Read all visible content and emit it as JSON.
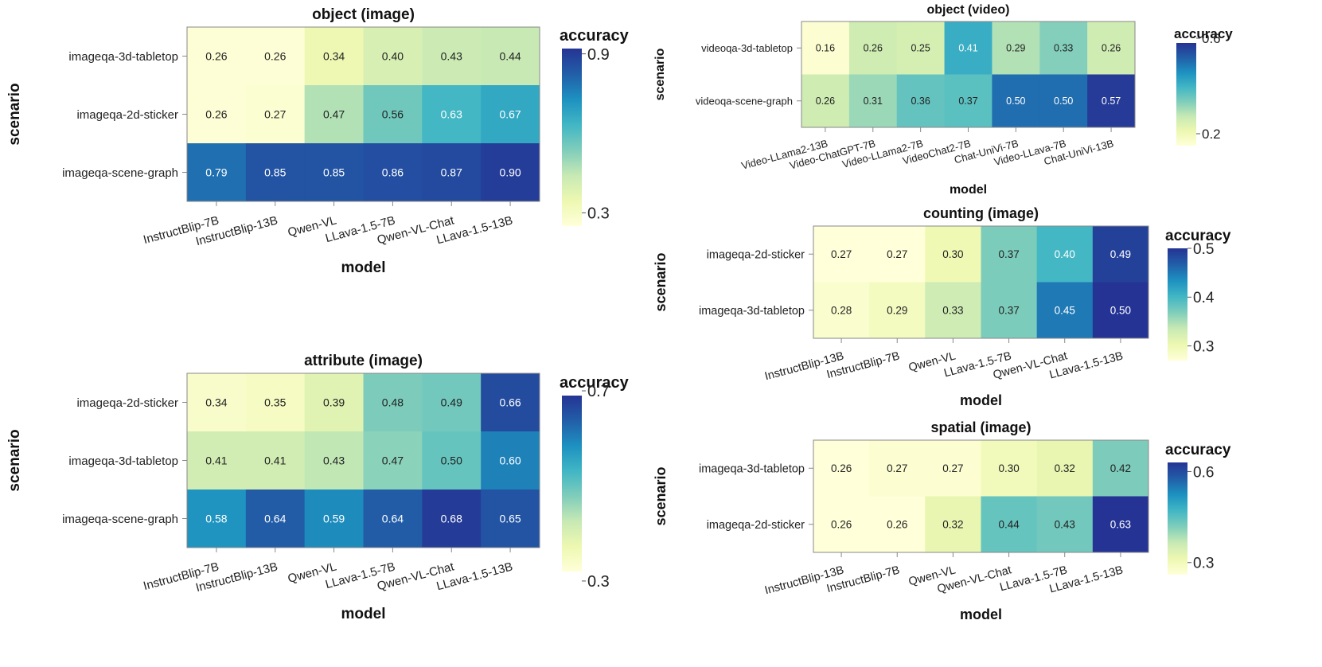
{
  "colormap": [
    "#ffffd9",
    "#edf8b1",
    "#c7e9b4",
    "#7fcdbb",
    "#41b6c4",
    "#1d91c0",
    "#225ea8",
    "#253494"
  ],
  "chart_data": [
    {
      "type": "heatmap",
      "title": "object (image)",
      "xlabel": "model",
      "ylabel": "scenario",
      "legend_title": "accuracy",
      "vmin": 0.25,
      "vmax": 0.92,
      "ticks": [
        0.3,
        0.9
      ],
      "tick_labels": [
        "0.3",
        "0.9"
      ],
      "x": [
        "InstructBlip-7B",
        "InstructBlip-13B",
        "Qwen-VL",
        "LLava-1.5-7B",
        "Qwen-VL-Chat",
        "LLava-1.5-13B"
      ],
      "y": [
        "imageqa-3d-tabletop",
        "imageqa-2d-sticker",
        "imageqa-scene-graph"
      ],
      "z": [
        [
          0.26,
          0.26,
          0.34,
          0.4,
          0.43,
          0.44
        ],
        [
          0.26,
          0.27,
          0.47,
          0.56,
          0.63,
          0.67
        ],
        [
          0.79,
          0.85,
          0.85,
          0.86,
          0.87,
          0.9
        ]
      ],
      "labels": [
        [
          "0.26",
          "0.26",
          "0.34",
          "0.40",
          "0.43",
          "0.44"
        ],
        [
          "0.26",
          "0.27",
          "0.47",
          "0.56",
          "0.63",
          "0.67"
        ],
        [
          "0.79",
          "0.85",
          "0.85",
          "0.86",
          "0.87",
          "0.90"
        ]
      ]
    },
    {
      "type": "heatmap",
      "title": "attribute (image)",
      "xlabel": "model",
      "ylabel": "scenario",
      "legend_title": "accuracy",
      "vmin": 0.32,
      "vmax": 0.69,
      "ticks": [
        0.3,
        0.7
      ],
      "tick_labels": [
        "0.3",
        "0.7"
      ],
      "x": [
        "InstructBlip-7B",
        "InstructBlip-13B",
        "Qwen-VL",
        "LLava-1.5-7B",
        "Qwen-VL-Chat",
        "LLava-1.5-13B"
      ],
      "y": [
        "imageqa-2d-sticker",
        "imageqa-3d-tabletop",
        "imageqa-scene-graph"
      ],
      "z": [
        [
          0.34,
          0.35,
          0.39,
          0.48,
          0.49,
          0.66
        ],
        [
          0.41,
          0.41,
          0.43,
          0.47,
          0.5,
          0.6
        ],
        [
          0.58,
          0.64,
          0.59,
          0.64,
          0.68,
          0.65
        ]
      ],
      "labels": [
        [
          "0.34",
          "0.35",
          "0.39",
          "0.48",
          "0.49",
          "0.66"
        ],
        [
          "0.41",
          "0.41",
          "0.43",
          "0.47",
          "0.50",
          "0.60"
        ],
        [
          "0.58",
          "0.64",
          "0.59",
          "0.64",
          "0.68",
          "0.65"
        ]
      ]
    },
    {
      "type": "heatmap",
      "title": "object (video)",
      "xlabel": "model",
      "ylabel": "scenario",
      "legend_title": "accuracy",
      "vmin": 0.15,
      "vmax": 0.58,
      "ticks": [
        0.2,
        0.6
      ],
      "tick_labels": [
        "0.2",
        "0.6"
      ],
      "x": [
        "Video-LLama2-13B",
        "Video-ChatGPT-7B",
        "Video-LLama2-7B",
        "VideoChat2-7B",
        "Chat-UniVi-7B",
        "Video-LLava-7B",
        "Chat-UniVi-13B"
      ],
      "y": [
        "videoqa-3d-tabletop",
        "videoqa-scene-graph"
      ],
      "z": [
        [
          0.16,
          0.26,
          0.25,
          0.41,
          0.29,
          0.33,
          0.26
        ],
        [
          0.26,
          0.31,
          0.36,
          0.37,
          0.5,
          0.5,
          0.57
        ]
      ],
      "labels": [
        [
          "0.16",
          "0.26",
          "0.25",
          "0.41",
          "0.29",
          "0.33",
          "0.26"
        ],
        [
          "0.26",
          "0.31",
          "0.36",
          "0.37",
          "0.50",
          "0.50",
          "0.57"
        ]
      ]
    },
    {
      "type": "heatmap",
      "title": "counting (image)",
      "xlabel": "model",
      "ylabel": "scenario",
      "legend_title": "accuracy",
      "vmin": 0.27,
      "vmax": 0.5,
      "ticks": [
        0.3,
        0.4,
        0.5
      ],
      "tick_labels": [
        "0.3",
        "0.4",
        "0.5"
      ],
      "x": [
        "InstructBlip-13B",
        "InstructBlip-7B",
        "Qwen-VL",
        "LLava-1.5-7B",
        "Qwen-VL-Chat",
        "LLava-1.5-13B"
      ],
      "y": [
        "imageqa-2d-sticker",
        "imageqa-3d-tabletop"
      ],
      "z": [
        [
          0.27,
          0.27,
          0.3,
          0.37,
          0.4,
          0.49
        ],
        [
          0.28,
          0.29,
          0.33,
          0.37,
          0.45,
          0.5
        ]
      ],
      "labels": [
        [
          "0.27",
          "0.27",
          "0.30",
          "0.37",
          "0.40",
          "0.49"
        ],
        [
          "0.28",
          "0.29",
          "0.33",
          "0.37",
          "0.45",
          "0.50"
        ]
      ]
    },
    {
      "type": "heatmap",
      "title": "spatial (image)",
      "xlabel": "model",
      "ylabel": "scenario",
      "legend_title": "accuracy",
      "vmin": 0.26,
      "vmax": 0.63,
      "ticks": [
        0.3,
        0.6
      ],
      "tick_labels": [
        "0.3",
        "0.6"
      ],
      "x": [
        "InstructBlip-13B",
        "InstructBlip-7B",
        "Qwen-VL",
        "Qwen-VL-Chat",
        "LLava-1.5-7B",
        "LLava-1.5-13B"
      ],
      "y": [
        "imageqa-3d-tabletop",
        "imageqa-2d-sticker"
      ],
      "z": [
        [
          0.26,
          0.27,
          0.27,
          0.3,
          0.32,
          0.42
        ],
        [
          0.26,
          0.26,
          0.32,
          0.44,
          0.43,
          0.63
        ]
      ],
      "labels": [
        [
          "0.26",
          "0.27",
          "0.27",
          "0.30",
          "0.32",
          "0.42"
        ],
        [
          "0.26",
          "0.26",
          "0.32",
          "0.44",
          "0.43",
          "0.63"
        ]
      ]
    }
  ]
}
